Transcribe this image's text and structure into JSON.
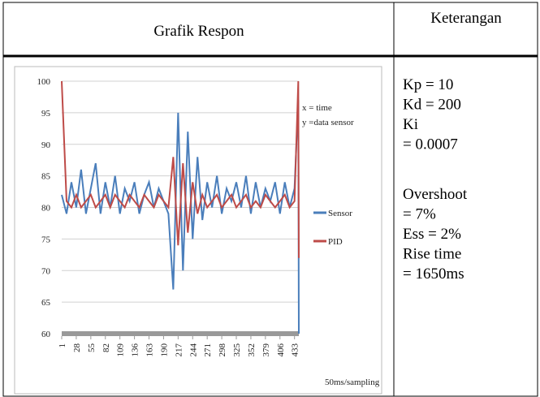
{
  "table": {
    "headers": [
      "Grafik Respon",
      "Keterangan"
    ],
    "notes": [
      [
        "Kp = 10",
        "Kd = 200",
        "Ki",
        "= 0.0007"
      ],
      [
        "Overshoot",
        "= 7%",
        "Ess = 2%",
        "Rise time",
        "= 1650ms"
      ]
    ]
  },
  "chart_data": {
    "type": "line",
    "annotations": [
      "x = time",
      "y =data sensor"
    ],
    "x_label": "50ms/sampling",
    "x": [
      1,
      10,
      19,
      28,
      37,
      46,
      55,
      64,
      73,
      82,
      91,
      100,
      109,
      118,
      127,
      136,
      145,
      154,
      163,
      172,
      181,
      190,
      199,
      208,
      217,
      226,
      235,
      244,
      253,
      262,
      271,
      280,
      289,
      298,
      307,
      316,
      325,
      334,
      343,
      352,
      361,
      370,
      379,
      388,
      397,
      406,
      415,
      424,
      433,
      440,
      441
    ],
    "series": [
      {
        "name": "Sensor",
        "color": "#4a7ebb",
        "values": [
          82,
          79,
          84,
          80,
          86,
          79,
          83,
          87,
          79,
          84,
          80,
          85,
          79,
          83,
          81,
          84,
          79,
          82,
          84,
          80,
          83,
          81,
          79,
          67,
          95,
          70,
          92,
          75,
          88,
          78,
          84,
          80,
          85,
          79,
          83,
          81,
          84,
          80,
          85,
          79,
          84,
          80,
          83,
          81,
          84,
          79,
          84,
          80,
          83,
          97,
          60
        ]
      },
      {
        "name": "PID",
        "color": "#be4b48",
        "values": [
          100,
          81,
          80,
          82,
          80,
          81,
          82,
          80,
          81,
          82,
          80,
          82,
          81,
          80,
          82,
          81,
          80,
          82,
          81,
          80,
          82,
          81,
          80,
          88,
          74,
          87,
          76,
          84,
          79,
          82,
          80,
          81,
          82,
          80,
          81,
          82,
          80,
          81,
          82,
          80,
          81,
          80,
          82,
          81,
          80,
          81,
          82,
          80,
          81,
          100,
          72
        ]
      }
    ],
    "xlim": [
      1,
      441
    ],
    "ylim": [
      60,
      100
    ],
    "xticks": [
      1,
      28,
      55,
      82,
      109,
      136,
      163,
      190,
      217,
      244,
      271,
      298,
      325,
      352,
      379,
      406,
      433
    ],
    "yticks": [
      60,
      65,
      70,
      75,
      80,
      85,
      90,
      95,
      100
    ],
    "grid": true
  }
}
